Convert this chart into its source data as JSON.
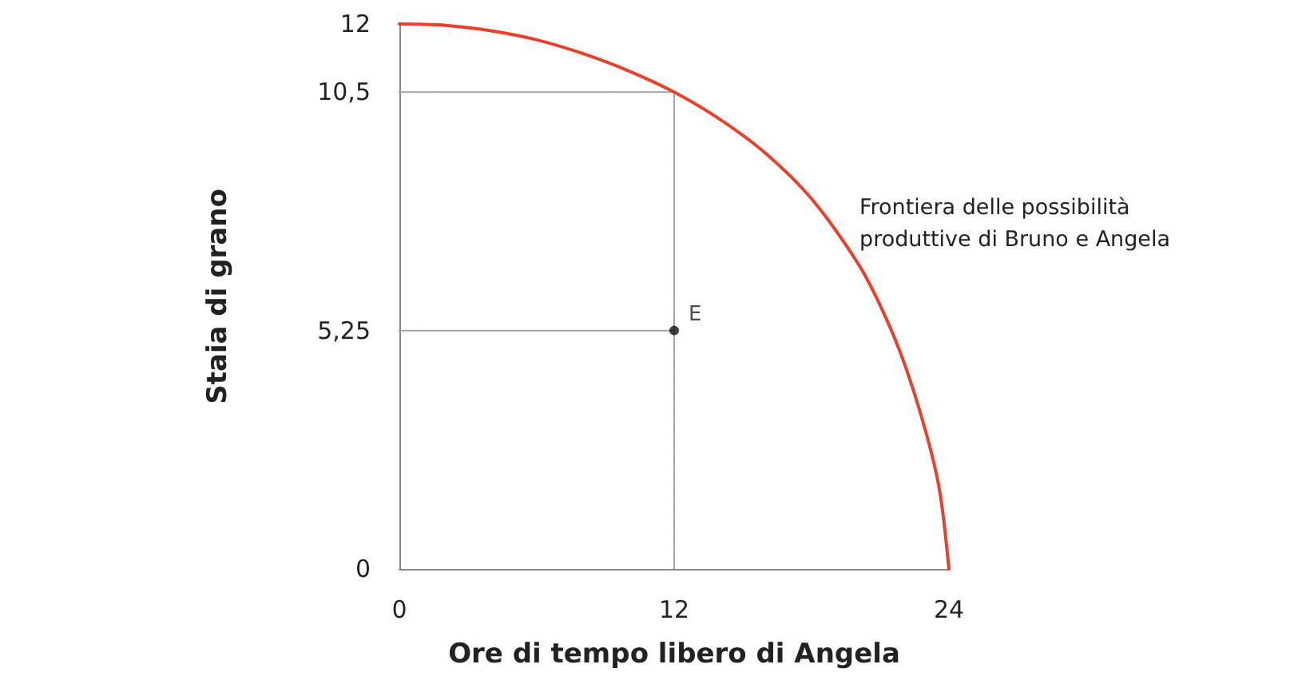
{
  "chart_data": {
    "type": "line",
    "xlabel": "Ore di tempo libero di Angela",
    "ylabel": "Staia di grano",
    "xlim": [
      0,
      24
    ],
    "xticks": [
      0,
      12,
      24
    ],
    "ylim": [
      0,
      12
    ],
    "yticks": [
      0,
      {
        "value": 5.25,
        "label": "5,25"
      },
      {
        "value": 10.5,
        "label": "10,5"
      },
      12
    ],
    "grid": false,
    "series": [
      {
        "color": "#e8402a",
        "x": [
          0,
          2,
          4,
          6,
          8,
          10,
          12,
          14,
          16,
          18,
          20,
          21,
          22,
          23,
          23.6,
          24
        ],
        "values": [
          12,
          11.97,
          11.85,
          11.65,
          11.35,
          10.97,
          10.5,
          9.9,
          9.15,
          8.15,
          6.75,
          5.8,
          4.6,
          3,
          1.7,
          0
        ]
      },
      {
        "color": "#999999",
        "line_style": "dotted",
        "x": [
          0,
          12,
          12
        ],
        "values": [
          10.5,
          10.5,
          0
        ]
      },
      {
        "color": "#999999",
        "line_style": "dotted",
        "x": [
          0,
          12
        ],
        "values": [
          5.25,
          5.25
        ]
      },
      {
        "type": "scatter",
        "marker": "circle",
        "color": "#111111",
        "x": [
          12
        ],
        "values": [
          5.25
        ]
      }
    ],
    "annotations": [
      {
        "text": "E",
        "x": 12,
        "y": 5.25
      },
      "Frontiera delle possibilità produttive di Bruno e Angela"
    ]
  }
}
